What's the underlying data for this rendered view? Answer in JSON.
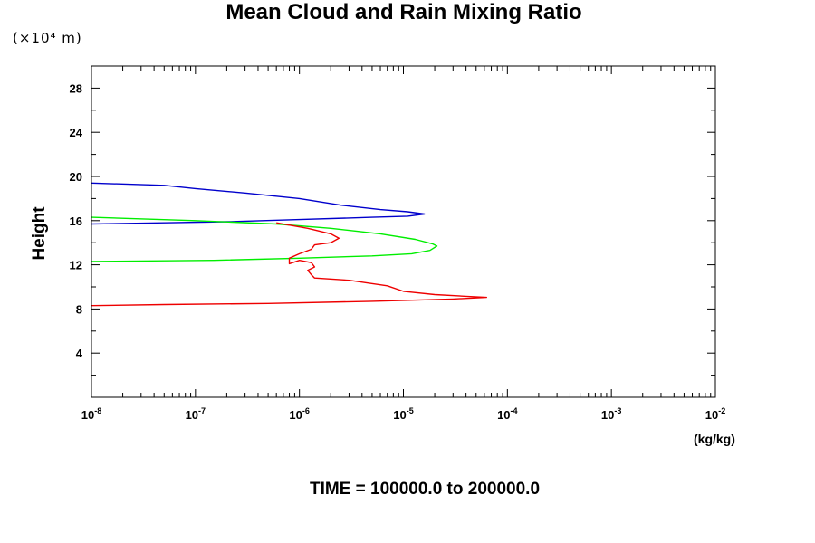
{
  "chart_data": {
    "type": "line",
    "title": "Mean Cloud and Rain Mixing Ratio",
    "scale_note": "(×10⁴ m)",
    "ylabel": "Height",
    "xlabel": "(kg/kg)",
    "footer": "TIME = 100000.0 to 200000.0",
    "x_scale": "log",
    "xlim": [
      1e-08,
      0.01
    ],
    "ylim": [
      0,
      30
    ],
    "x_ticks": [
      {
        "base": "10",
        "exp": "-8",
        "value": 1e-08
      },
      {
        "base": "10",
        "exp": "-7",
        "value": 1e-07
      },
      {
        "base": "10",
        "exp": "-6",
        "value": 1e-06
      },
      {
        "base": "10",
        "exp": "-5",
        "value": 1e-05
      },
      {
        "base": "10",
        "exp": "-4",
        "value": 0.0001
      },
      {
        "base": "10",
        "exp": "-3",
        "value": 0.001
      },
      {
        "base": "10",
        "exp": "-2",
        "value": 0.01
      }
    ],
    "y_ticks": [
      "4",
      "8",
      "12",
      "16",
      "20",
      "24",
      "28"
    ],
    "grid": false,
    "series": [
      {
        "color": "#0000cc",
        "points": [
          [
            1e-08,
            19.4
          ],
          [
            5e-08,
            19.2
          ],
          [
            1e-07,
            18.9
          ],
          [
            3e-07,
            18.5
          ],
          [
            1e-06,
            18.0
          ],
          [
            2.5e-06,
            17.4
          ],
          [
            6e-06,
            17.0
          ],
          [
            1.1e-05,
            16.8
          ],
          [
            1.6e-05,
            16.6
          ],
          [
            1.1e-05,
            16.4
          ],
          [
            5e-06,
            16.3
          ],
          [
            1e-06,
            16.1
          ],
          [
            2e-07,
            15.9
          ],
          [
            5e-08,
            15.8
          ],
          [
            1e-08,
            15.7
          ]
        ]
      },
      {
        "color": "#00ee00",
        "points": [
          [
            1e-08,
            16.3
          ],
          [
            1e-07,
            16.0
          ],
          [
            6e-07,
            15.7
          ],
          [
            2e-06,
            15.3
          ],
          [
            6e-06,
            14.8
          ],
          [
            1.3e-05,
            14.3
          ],
          [
            1.9e-05,
            13.9
          ],
          [
            2.1e-05,
            13.7
          ],
          [
            1.8e-05,
            13.3
          ],
          [
            1.2e-05,
            13.0
          ],
          [
            5e-06,
            12.8
          ],
          [
            1e-06,
            12.6
          ],
          [
            1.5e-07,
            12.4
          ],
          [
            1e-08,
            12.3
          ]
        ]
      },
      {
        "color": "#ee0000",
        "points": [
          [
            6e-07,
            15.8
          ],
          [
            1.2e-06,
            15.3
          ],
          [
            2e-06,
            14.8
          ],
          [
            2.4e-06,
            14.4
          ],
          [
            2e-06,
            14.0
          ],
          [
            1.4e-06,
            13.8
          ],
          [
            1.3e-06,
            13.4
          ],
          [
            1e-06,
            13.0
          ],
          [
            8e-07,
            12.6
          ],
          [
            8e-07,
            12.1
          ],
          [
            1e-06,
            12.4
          ],
          [
            1.3e-06,
            12.2
          ],
          [
            1.4e-06,
            11.8
          ],
          [
            1.2e-06,
            11.5
          ],
          [
            1.3e-06,
            11.1
          ],
          [
            1.4e-06,
            10.8
          ],
          [
            3e-06,
            10.6
          ],
          [
            7e-06,
            10.1
          ],
          [
            1e-05,
            9.6
          ],
          [
            2e-05,
            9.3
          ],
          [
            4e-05,
            9.15
          ],
          [
            6.3e-05,
            9.05
          ],
          [
            3e-05,
            8.9
          ],
          [
            5e-06,
            8.7
          ],
          [
            5e-07,
            8.5
          ],
          [
            5e-08,
            8.4
          ],
          [
            1e-08,
            8.3
          ]
        ]
      }
    ]
  }
}
